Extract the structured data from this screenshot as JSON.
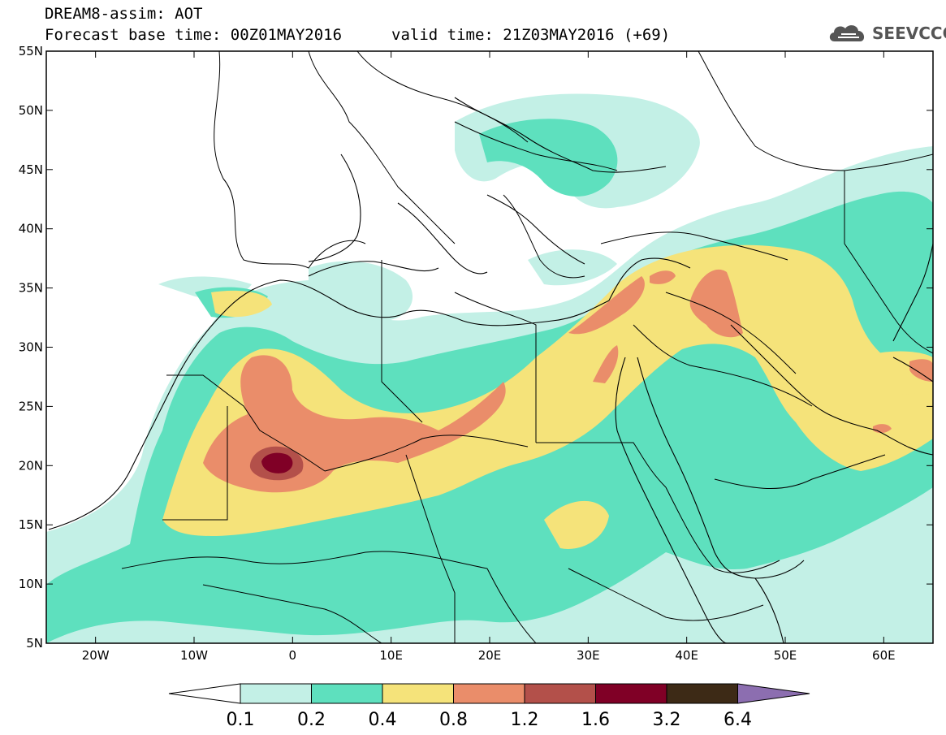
{
  "header": {
    "title": "DREAM8-assim: AOT",
    "base_time": "Forecast base time: 00Z01MAY2016",
    "valid_time": "valid time: 21Z03MAY2016 (+69)"
  },
  "logo": {
    "text": "SEEVCCC",
    "icon": "cloud-icon"
  },
  "map": {
    "lon_range": [
      -25,
      65
    ],
    "lat_range": [
      5,
      55
    ],
    "lon_ticks": [
      {
        "value": -20,
        "label": "20W"
      },
      {
        "value": -10,
        "label": "10W"
      },
      {
        "value": 0,
        "label": "0"
      },
      {
        "value": 10,
        "label": "10E"
      },
      {
        "value": 20,
        "label": "20E"
      },
      {
        "value": 30,
        "label": "30E"
      },
      {
        "value": 40,
        "label": "40E"
      },
      {
        "value": 50,
        "label": "50E"
      },
      {
        "value": 60,
        "label": "60E"
      }
    ],
    "lat_ticks": [
      {
        "value": 5,
        "label": "5N"
      },
      {
        "value": 10,
        "label": "10N"
      },
      {
        "value": 15,
        "label": "15N"
      },
      {
        "value": 20,
        "label": "20N"
      },
      {
        "value": 25,
        "label": "25N"
      },
      {
        "value": 30,
        "label": "30N"
      },
      {
        "value": 35,
        "label": "35N"
      },
      {
        "value": 40,
        "label": "40N"
      },
      {
        "value": 45,
        "label": "45N"
      },
      {
        "value": 50,
        "label": "50N"
      },
      {
        "value": 55,
        "label": "55N"
      }
    ]
  },
  "colorbar": {
    "colors": [
      "#c3f0e6",
      "#5ee0be",
      "#f5e37a",
      "#ea8d6a",
      "#b3504a",
      "#800026",
      "#3d2a16"
    ],
    "low_arrow_color": "#ffffff",
    "high_arrow_color": "#8c6eb0",
    "levels": [
      "0.1",
      "0.2",
      "0.4",
      "0.8",
      "1.2",
      "1.6",
      "3.2",
      "6.4"
    ]
  }
}
